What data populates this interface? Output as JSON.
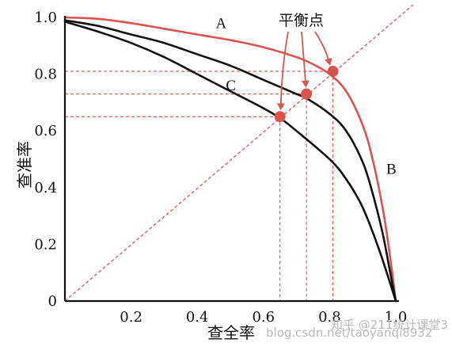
{
  "chart_data": {
    "type": "line",
    "xlabel": "查全率",
    "ylabel": "查准率",
    "xlim": [
      0,
      1.0
    ],
    "ylim": [
      0,
      1.0
    ],
    "x_ticks": [
      "0.2",
      "0.4",
      "0.6",
      "0.8",
      "1.0"
    ],
    "y_ticks": [
      "0",
      "0.2",
      "0.4",
      "0.6",
      "0.8",
      "1.0"
    ],
    "grid": false,
    "series": [
      {
        "name": "A",
        "color": "#d9534f",
        "x": [
          0.0,
          0.1,
          0.2,
          0.3,
          0.4,
          0.5,
          0.6,
          0.7,
          0.75,
          0.8,
          0.85,
          0.9,
          0.93,
          0.96,
          0.98,
          1.0
        ],
        "y": [
          1.0,
          0.995,
          0.98,
          0.96,
          0.94,
          0.92,
          0.895,
          0.86,
          0.835,
          0.8,
          0.74,
          0.62,
          0.5,
          0.33,
          0.18,
          0.0
        ]
      },
      {
        "name": "B",
        "color": "#111111",
        "x": [
          0.0,
          0.1,
          0.2,
          0.3,
          0.4,
          0.5,
          0.6,
          0.7,
          0.73,
          0.8,
          0.85,
          0.9,
          0.93,
          0.96,
          0.98,
          1.0
        ],
        "y": [
          0.99,
          0.97,
          0.94,
          0.91,
          0.87,
          0.83,
          0.78,
          0.73,
          0.715,
          0.66,
          0.6,
          0.49,
          0.38,
          0.24,
          0.12,
          0.0
        ]
      },
      {
        "name": "C",
        "color": "#111111",
        "x": [
          0.0,
          0.1,
          0.2,
          0.3,
          0.4,
          0.5,
          0.6,
          0.65,
          0.7,
          0.8,
          0.85,
          0.9,
          0.95,
          1.0
        ],
        "y": [
          0.985,
          0.95,
          0.91,
          0.86,
          0.8,
          0.74,
          0.68,
          0.645,
          0.6,
          0.5,
          0.43,
          0.33,
          0.18,
          0.0
        ]
      }
    ],
    "reference_line": {
      "x": [
        0,
        1.1
      ],
      "y": [
        0,
        1.1
      ],
      "color": "#d9534f"
    },
    "break_even_points": [
      {
        "x": 0.65,
        "y": 0.65
      },
      {
        "x": 0.73,
        "y": 0.73
      },
      {
        "x": 0.81,
        "y": 0.81
      }
    ],
    "point_color": "#d9534f",
    "annotation": "平衡点",
    "curve_labels": [
      {
        "text": "A",
        "x": 0.47,
        "y": 0.985
      },
      {
        "text": "B",
        "x": 1.0,
        "y": 0.46
      },
      {
        "text": "C",
        "x": 0.52,
        "y": 0.76
      }
    ]
  },
  "watermark": "知乎 @211统计课堂3",
  "watermark_url": "blog.csdn.net/taoyanqi8932"
}
